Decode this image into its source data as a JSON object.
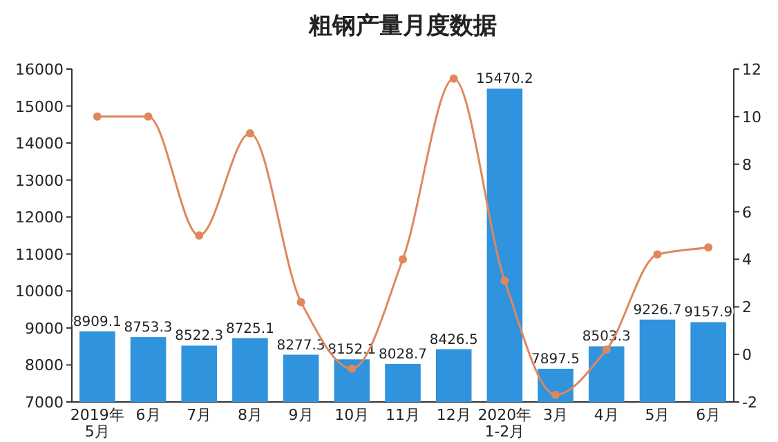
{
  "chart_data": {
    "type": "bar",
    "title": "粗钢产量月度数据",
    "categories": [
      "2019年\n5月",
      "6月",
      "7月",
      "8月",
      "9月",
      "10月",
      "11月",
      "12月",
      "2020年\n1-2月",
      "3月",
      "4月",
      "5月",
      "6月"
    ],
    "series": [
      {
        "color": "#2f93de",
        "values": [
          8909.1,
          8753.3,
          8522.3,
          8725.1,
          8277.3,
          8152.1,
          8028.7,
          8426.5,
          15470.2,
          7897.5,
          8503.3,
          9226.7,
          9157.9
        ],
        "value_labels": [
          "8909.1",
          "8753.3",
          "8522.3",
          "8725.1",
          "8277.3",
          "8152.1",
          "8028.7",
          "8426.5",
          "15470.2",
          "7897.5",
          "8503.3",
          "9226.7",
          "9157.9"
        ]
      },
      {
        "type": "line",
        "axis": "y2",
        "color": "#e0875c",
        "marker": "circle",
        "values": [
          10.0,
          10.0,
          5.0,
          9.3,
          2.2,
          -0.6,
          4.0,
          11.6,
          3.1,
          -1.7,
          0.2,
          4.2,
          4.5
        ]
      }
    ],
    "ylim": [
      7000,
      16000
    ],
    "yticks": [
      7000,
      8000,
      9000,
      10000,
      11000,
      12000,
      13000,
      14000,
      15000,
      16000
    ],
    "y2lim": [
      -2,
      12
    ],
    "y2ticks": [
      -2,
      0,
      2,
      4,
      6,
      8,
      10,
      12
    ],
    "grid": false
  }
}
